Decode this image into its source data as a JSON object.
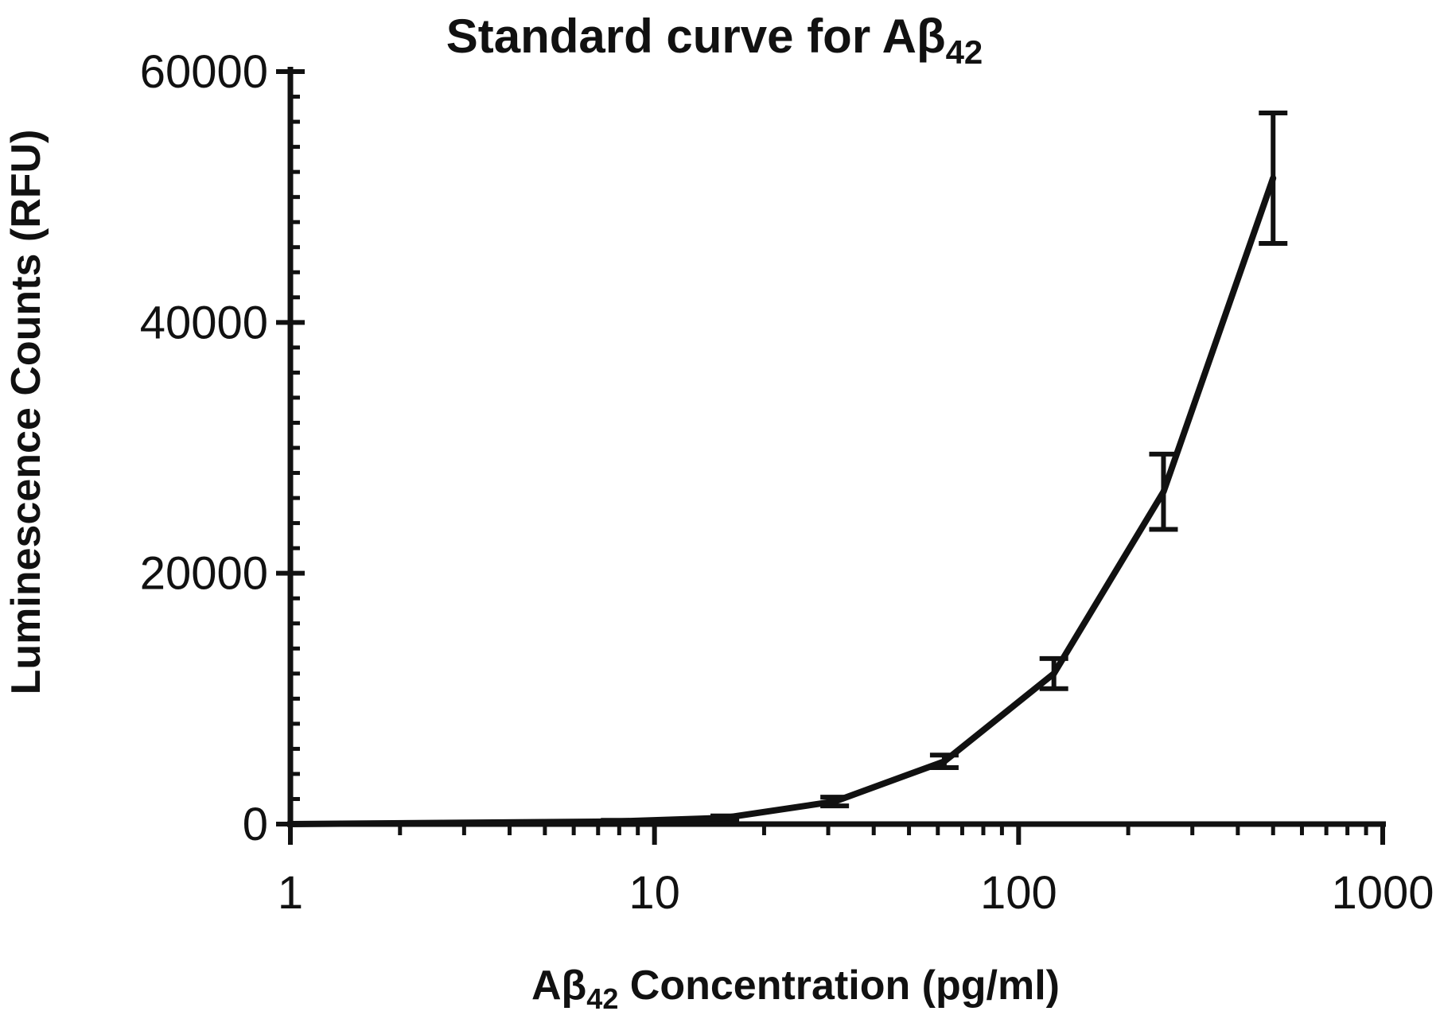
{
  "chart_data": {
    "type": "line",
    "title": {
      "main": "Standard curve for Aβ",
      "sub": "42"
    },
    "xlabel": {
      "pre": "Aβ",
      "sub": "42",
      "post": " Concentration (pg/ml)"
    },
    "ylabel": "Luminescence Counts (RFU)",
    "xscale": "log",
    "xlim": [
      1,
      1000
    ],
    "ylim": [
      0,
      60000
    ],
    "x_ticks": [
      1,
      10,
      100,
      1000
    ],
    "x_tick_labels": [
      "1",
      "10",
      "100",
      "1000"
    ],
    "y_ticks": [
      0,
      20000,
      40000,
      60000
    ],
    "y_tick_labels": [
      "0",
      "20000",
      "40000",
      "60000"
    ],
    "grid": false,
    "legend": "none",
    "line_color": "#111111",
    "series": [
      {
        "x": [
          7.8,
          15.6,
          31.25,
          62.5,
          125,
          250,
          500
        ],
        "y": [
          200,
          500,
          1800,
          5000,
          12000,
          26500,
          51500
        ],
        "err": [
          100,
          150,
          350,
          500,
          1200,
          3000,
          5200
        ]
      }
    ]
  }
}
